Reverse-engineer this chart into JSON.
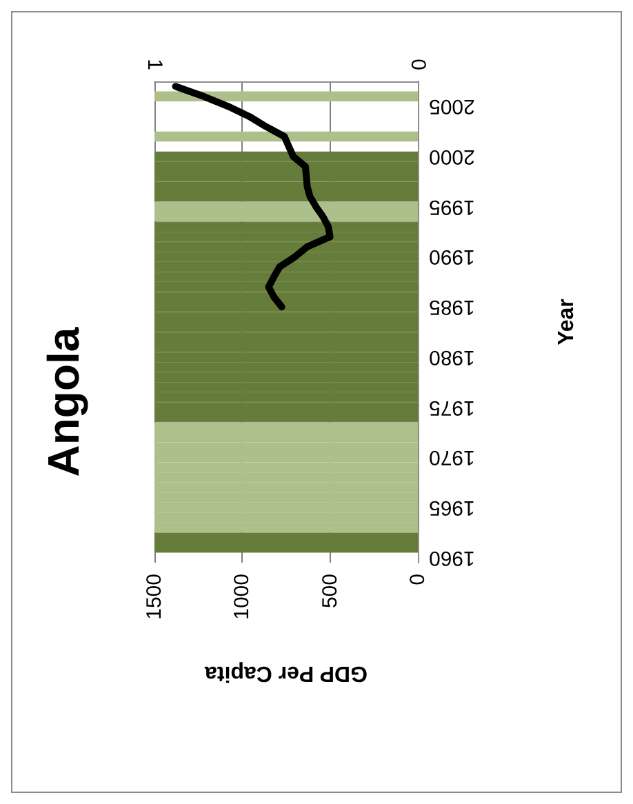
{
  "chart_data": {
    "type": "bar",
    "orientation": "horizontal",
    "title": "Angola",
    "xlabel": "GDP Per Capita",
    "ylabel": "Year",
    "categories": [
      null,
      null,
      "2005",
      null,
      null,
      null,
      null,
      "2000",
      null,
      null,
      null,
      null,
      "1995",
      null,
      null,
      null,
      null,
      "1990",
      null,
      null,
      null,
      null,
      "1985",
      null,
      null,
      null,
      null,
      "1980",
      null,
      null,
      null,
      null,
      "1975",
      null,
      null,
      null,
      null,
      "1970",
      null,
      null,
      null,
      null,
      "1965",
      null,
      null,
      null,
      null,
      "1960"
    ],
    "series": [
      {
        "axis": "x2",
        "colors": [
          null,
          "#adbf8a",
          null,
          null,
          null,
          "#adbf8a",
          null,
          "#667c3a",
          "#667c3a",
          "#667c3a",
          "#667c3a",
          "#667c3a",
          "#adbf8a",
          "#adbf8a",
          "#667c3a",
          "#667c3a",
          "#667c3a",
          "#667c3a",
          "#667c3a",
          "#667c3a",
          "#667c3a",
          "#667c3a",
          "#667c3a",
          "#667c3a",
          "#667c3a",
          "#667c3a",
          "#667c3a",
          "#667c3a",
          "#667c3a",
          "#667c3a",
          "#667c3a",
          "#667c3a",
          "#667c3a",
          "#667c3a",
          "#adbf8a",
          "#adbf8a",
          "#adbf8a",
          "#adbf8a",
          "#adbf8a",
          "#adbf8a",
          "#adbf8a",
          "#adbf8a",
          "#adbf8a",
          "#adbf8a",
          "#adbf8a",
          "#667c3a",
          "#667c3a",
          null
        ],
        "values": [
          null,
          1,
          null,
          null,
          null,
          1,
          null,
          1,
          1,
          1,
          1,
          1,
          1,
          1,
          1,
          1,
          1,
          1,
          1,
          1,
          1,
          1,
          1,
          1,
          1,
          1,
          1,
          1,
          1,
          1,
          1,
          1,
          1,
          1,
          1,
          1,
          1,
          1,
          1,
          1,
          1,
          1,
          1,
          1,
          1,
          1,
          1,
          null
        ]
      },
      {
        "type": "line",
        "color": "#000000",
        "values": [
          1380,
          1220,
          1080,
          960,
          866,
          760,
          735,
          709,
          640,
          635,
          630,
          614,
          580,
          540,
          510,
          500,
          630,
          700,
          787,
          820,
          850,
          820,
          775,
          null,
          null,
          null,
          null,
          null,
          null,
          null,
          null,
          null,
          null,
          null,
          null,
          null,
          null,
          null,
          null,
          null,
          null,
          null,
          null,
          null,
          null,
          null,
          null,
          null
        ]
      }
    ],
    "xlim": [
      1500,
      0
    ],
    "xticks": [
      0,
      500,
      1000,
      1500
    ],
    "x2lim": [
      1,
      0
    ],
    "x2ticks": [
      0,
      1
    ],
    "grid": "x",
    "marker": "none",
    "line_style": "solid"
  }
}
